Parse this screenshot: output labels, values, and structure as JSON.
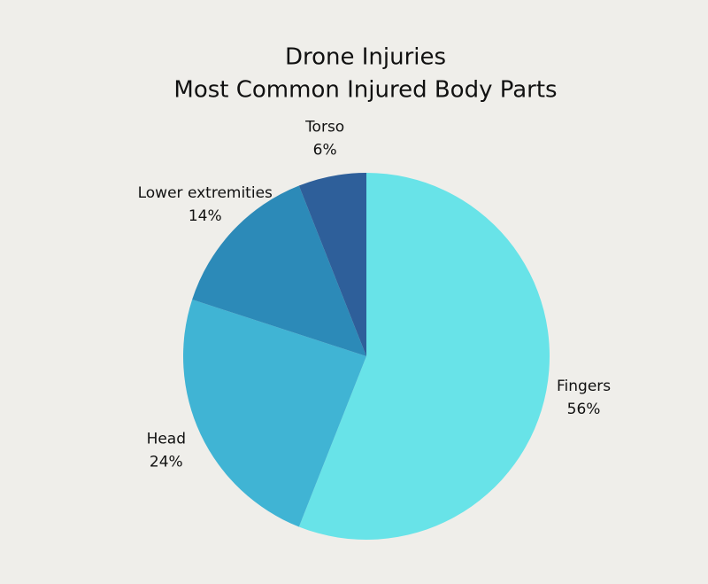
{
  "chart_data": {
    "type": "pie",
    "title": "Drone Injuries",
    "subtitle": "Most Common Injured Body Parts",
    "categories": [
      "Fingers",
      "Head",
      "Lower extremities",
      "Torso"
    ],
    "values": [
      56,
      24,
      14,
      6
    ],
    "value_labels": [
      "56%",
      "24%",
      "14%",
      "6%"
    ],
    "colors": [
      "#68e3e8",
      "#40b4d4",
      "#2c8ab8",
      "#2e5f9a"
    ]
  }
}
